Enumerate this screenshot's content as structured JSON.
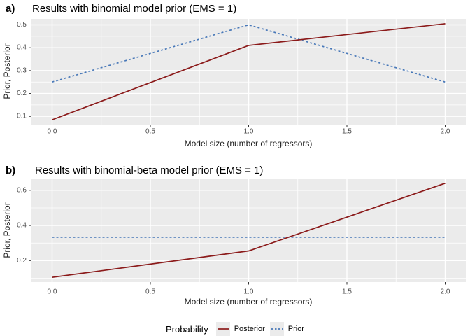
{
  "legend": {
    "title": "Probability",
    "key_background": "#ebebeb",
    "entries": [
      {
        "label": "Posterior",
        "color": "#8b1a1a",
        "dash": "solid"
      },
      {
        "label": "Prior",
        "color": "#4878b8",
        "dash": "dashed"
      }
    ]
  },
  "chart_data": [
    {
      "type": "line",
      "tag": "a)",
      "title": "Results with binomial model prior (EMS = 1)",
      "xlabel": "Model size (number of regressors)",
      "ylabel": "Prior, Posterior",
      "x": [
        0,
        1,
        2
      ],
      "series": [
        {
          "name": "Posterior",
          "values": [
            0.085,
            0.41,
            0.505
          ],
          "color": "#8b1a1a",
          "style": "solid"
        },
        {
          "name": "Prior",
          "values": [
            0.25,
            0.5,
            0.25
          ],
          "color": "#4878b8",
          "style": "dashed"
        }
      ],
      "xlim": [
        -0.105,
        2.105
      ],
      "ylim": [
        0.064,
        0.526
      ],
      "x_tick_values": [
        0,
        0.5,
        1,
        1.5,
        2
      ],
      "x_tick_labels": [
        "0.0",
        "0.5",
        "1.0",
        "1.5",
        "2.0"
      ],
      "y_tick_values": [
        0.1,
        0.2,
        0.3,
        0.4,
        0.5
      ],
      "y_tick_labels": [
        "0.1",
        "0.2",
        "0.3",
        "0.4",
        "0.5"
      ],
      "x_minor": [
        0.25,
        0.75,
        1.25,
        1.75
      ],
      "y_minor": [
        0.15,
        0.25,
        0.35,
        0.45
      ],
      "panel_bg": "#ebebeb",
      "grid_color": "#ffffff",
      "grid": true,
      "legend_position": "bottom"
    },
    {
      "type": "line",
      "tag": "b)",
      "title": "Results with binomial-beta model prior (EMS = 1)",
      "xlabel": "Model size (number of regressors)",
      "ylabel": "Prior, Posterior",
      "x": [
        0,
        1,
        2
      ],
      "series": [
        {
          "name": "Posterior",
          "values": [
            0.105,
            0.255,
            0.64
          ],
          "color": "#8b1a1a",
          "style": "solid"
        },
        {
          "name": "Prior",
          "values": [
            0.3333,
            0.3333,
            0.3333
          ],
          "color": "#4878b8",
          "style": "dashed"
        }
      ],
      "xlim": [
        -0.105,
        2.105
      ],
      "ylim": [
        0.078,
        0.667
      ],
      "x_tick_values": [
        0,
        0.5,
        1,
        1.5,
        2
      ],
      "x_tick_labels": [
        "0.0",
        "0.5",
        "1.0",
        "1.5",
        "2.0"
      ],
      "y_tick_values": [
        0.2,
        0.4,
        0.6
      ],
      "y_tick_labels": [
        "0.2",
        "0.4",
        "0.6"
      ],
      "x_minor": [
        0.25,
        0.75,
        1.25,
        1.75
      ],
      "y_minor": [
        0.1,
        0.3,
        0.5
      ],
      "panel_bg": "#ebebeb",
      "grid_color": "#ffffff",
      "grid": true,
      "legend_position": "bottom"
    }
  ]
}
